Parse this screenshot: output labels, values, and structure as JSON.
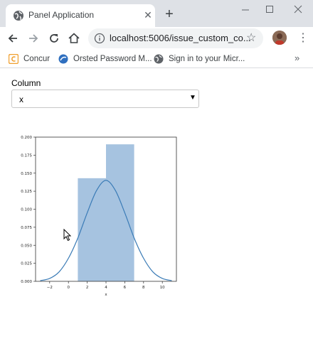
{
  "browser": {
    "tab": {
      "title": "Panel Application",
      "close_icon": "close-icon",
      "favicon": "globe-icon"
    },
    "new_tab_icon": "plus-icon",
    "window_controls": [
      "minimize-icon",
      "maximize-icon",
      "close-icon"
    ],
    "toolbar": {
      "back_icon": "arrow-left-icon",
      "forward_icon": "arrow-right-icon",
      "reload_icon": "reload-icon",
      "home_icon": "home-icon",
      "url": "localhost:5006/issue_custom_co...",
      "star_icon": "star-icon",
      "menu_icon": "kebab-menu-icon"
    },
    "bookmarks": [
      {
        "label": "Concur",
        "icon": "concur-icon"
      },
      {
        "label": "Orsted Password M...",
        "icon": "password-icon"
      },
      {
        "label": "Sign in to your Micr...",
        "icon": "globe-icon"
      }
    ],
    "bookmarks_more": "»"
  },
  "page": {
    "select": {
      "label": "Column",
      "value": "x",
      "caret": "▼"
    }
  },
  "chart_data": {
    "type": "bar",
    "description_kind": "histogram with kde line",
    "xlabel": "x",
    "ylabel": "",
    "title": "",
    "xlim": [
      -3.5,
      11.5
    ],
    "ylim": [
      0,
      0.2
    ],
    "x_ticks": [
      -2,
      0,
      2,
      4,
      6,
      8,
      10
    ],
    "x_tick_labels": [
      "−2",
      "0",
      "2",
      "4",
      "6",
      "8",
      "10"
    ],
    "y_ticks": [
      0,
      0.025,
      0.05,
      0.075,
      0.1,
      0.125,
      0.15,
      0.175,
      0.2
    ],
    "y_tick_labels": [
      "0.000",
      "0.025",
      "0.050",
      "0.075",
      "0.100",
      "0.125",
      "0.150",
      "0.175",
      "0.200"
    ],
    "bins": [
      {
        "x0": 1,
        "x1": 4,
        "value": 0.143
      },
      {
        "x0": 4,
        "x1": 7,
        "value": 0.19
      }
    ],
    "kde": {
      "x": [
        -3,
        -2,
        -1,
        0,
        1,
        2,
        3,
        4,
        5,
        6,
        7,
        8,
        9,
        10,
        11
      ],
      "y": [
        0.001,
        0.004,
        0.013,
        0.032,
        0.06,
        0.095,
        0.126,
        0.14,
        0.126,
        0.095,
        0.06,
        0.032,
        0.013,
        0.004,
        0.001
      ]
    },
    "colors": {
      "bar": "#a6c3e0",
      "line": "#3a7bb6",
      "frame": "#333333"
    },
    "grid": false,
    "legend": "none"
  }
}
